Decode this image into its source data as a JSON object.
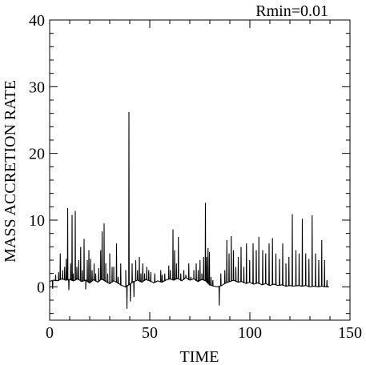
{
  "chart_data": {
    "type": "line",
    "title": "",
    "annotation": "Rmin=0.01",
    "xlabel": "TIME",
    "ylabel": "MASS ACCRETION RATE",
    "xlim": [
      0,
      150
    ],
    "ylim": [
      -5,
      40
    ],
    "xticks": [
      0,
      50,
      100,
      150
    ],
    "yticks": [
      0,
      10,
      20,
      30,
      40
    ],
    "grid": false,
    "series": [
      {
        "baseline": [
          [
            0,
            0.8
          ],
          [
            2,
            1.0
          ],
          [
            4,
            0.9
          ],
          [
            6,
            1.2
          ],
          [
            8,
            1.0
          ],
          [
            10,
            1.1
          ],
          [
            12,
            0.9
          ],
          [
            14,
            1.2
          ],
          [
            16,
            0.8
          ],
          [
            18,
            1.0
          ],
          [
            20,
            0.6
          ],
          [
            22,
            1.1
          ],
          [
            24,
            0.7
          ],
          [
            26,
            1.2
          ],
          [
            28,
            0.8
          ],
          [
            30,
            0.5
          ],
          [
            32,
            0.9
          ],
          [
            34,
            0.6
          ],
          [
            36,
            0.2
          ],
          [
            37,
            0.1
          ],
          [
            38,
            0.0
          ],
          [
            39,
            0.2
          ],
          [
            40,
            0.4
          ],
          [
            42,
            0.8
          ],
          [
            44,
            1.0
          ],
          [
            46,
            0.7
          ],
          [
            48,
            1.1
          ],
          [
            50,
            0.9
          ],
          [
            52,
            0.6
          ],
          [
            54,
            0.9
          ],
          [
            56,
            0.7
          ],
          [
            58,
            1.0
          ],
          [
            60,
            1.2
          ],
          [
            62,
            1.0
          ],
          [
            64,
            1.3
          ],
          [
            66,
            0.9
          ],
          [
            68,
            1.4
          ],
          [
            70,
            1.0
          ],
          [
            72,
            1.2
          ],
          [
            74,
            0.8
          ],
          [
            76,
            1.1
          ],
          [
            78,
            0.9
          ],
          [
            80,
            0.3
          ],
          [
            82,
            0.1
          ],
          [
            84,
            0.0
          ],
          [
            86,
            0.2
          ],
          [
            88,
            0.6
          ],
          [
            90,
            0.8
          ],
          [
            92,
            1.0
          ],
          [
            94,
            0.7
          ],
          [
            96,
            0.8
          ],
          [
            98,
            0.5
          ],
          [
            100,
            0.7
          ],
          [
            102,
            0.4
          ],
          [
            104,
            0.6
          ],
          [
            106,
            0.3
          ],
          [
            108,
            0.5
          ],
          [
            110,
            0.2
          ],
          [
            112,
            0.4
          ],
          [
            114,
            0.2
          ],
          [
            116,
            0.3
          ],
          [
            118,
            0.1
          ],
          [
            120,
            0.2
          ],
          [
            122,
            0.1
          ],
          [
            124,
            0.2
          ],
          [
            126,
            0.1
          ],
          [
            128,
            0.2
          ],
          [
            130,
            0.0
          ],
          [
            132,
            0.1
          ],
          [
            134,
            0.0
          ],
          [
            136,
            0.1
          ],
          [
            138,
            0.0
          ],
          [
            139.5,
            0.0
          ]
        ],
        "spikes": [
          [
            1.5,
            -0.3
          ],
          [
            3,
            1.8
          ],
          [
            4.5,
            2.2
          ],
          [
            5.3,
            5.0
          ],
          [
            6.5,
            2.5
          ],
          [
            7.5,
            3.0
          ],
          [
            8.3,
            4.2
          ],
          [
            9.0,
            11.8
          ],
          [
            9.6,
            -0.5
          ],
          [
            10.5,
            3.5
          ],
          [
            11.2,
            10.8
          ],
          [
            11.8,
            2.0
          ],
          [
            12.8,
            11.4
          ],
          [
            13.6,
            3.0
          ],
          [
            14.5,
            4.0
          ],
          [
            15.5,
            6.0
          ],
          [
            16.3,
            2.5
          ],
          [
            17.2,
            7.2
          ],
          [
            18.0,
            -0.4
          ],
          [
            18.8,
            4.0
          ],
          [
            19.6,
            5.5
          ],
          [
            20.4,
            4.2
          ],
          [
            21.2,
            2.5
          ],
          [
            22.2,
            3.5
          ],
          [
            23.0,
            2.0
          ],
          [
            24.5,
            2.8
          ],
          [
            25.5,
            5.5
          ],
          [
            26.2,
            8.3
          ],
          [
            27.2,
            9.5
          ],
          [
            28.0,
            3.5
          ],
          [
            29.0,
            2.0
          ],
          [
            30.0,
            5.0
          ],
          [
            31.2,
            3.0
          ],
          [
            32.0,
            3.0
          ],
          [
            33.4,
            6.5
          ],
          [
            34.2,
            1.5
          ],
          [
            35.5,
            3.5
          ],
          [
            38.0,
            2.5
          ],
          [
            38.6,
            -3.3
          ],
          [
            39.6,
            26.2
          ],
          [
            40.3,
            -2.2
          ],
          [
            41.2,
            3.5
          ],
          [
            42.1,
            -1.5
          ],
          [
            43.0,
            4.0
          ],
          [
            43.9,
            2.5
          ],
          [
            44.8,
            4.5
          ],
          [
            45.6,
            2.0
          ],
          [
            46.5,
            3.5
          ],
          [
            47.4,
            2.0
          ],
          [
            48.5,
            3.0
          ],
          [
            49.5,
            2.5
          ],
          [
            50.5,
            2.2
          ],
          [
            52.5,
            2.0
          ],
          [
            55.5,
            2.5
          ],
          [
            56.2,
            1.8
          ],
          [
            57.5,
            2.0
          ],
          [
            59.5,
            3.2
          ],
          [
            60.3,
            2.5
          ],
          [
            61.6,
            8.6
          ],
          [
            62.4,
            5.5
          ],
          [
            63.3,
            3.5
          ],
          [
            64.3,
            7.5
          ],
          [
            65.5,
            2.0
          ],
          [
            67.0,
            2.5
          ],
          [
            68.0,
            1.8
          ],
          [
            69.5,
            3.5
          ],
          [
            70.5,
            1.5
          ],
          [
            72.0,
            2.5
          ],
          [
            73.2,
            3.5
          ],
          [
            74.2,
            2.5
          ],
          [
            75.1,
            4.0
          ],
          [
            76.0,
            2.0
          ],
          [
            76.9,
            4.5
          ],
          [
            77.8,
            12.6
          ],
          [
            78.4,
            4.5
          ],
          [
            79.1,
            5.8
          ],
          [
            79.8,
            5.2
          ],
          [
            80.6,
            1.5
          ],
          [
            81.5,
            1.0
          ],
          [
            84.7,
            -2.8
          ],
          [
            85.5,
            2.0
          ],
          [
            87.5,
            2.5
          ],
          [
            88.5,
            7.0
          ],
          [
            89.6,
            5.0
          ],
          [
            90.7,
            7.6
          ],
          [
            91.8,
            5.5
          ],
          [
            93.0,
            3.0
          ],
          [
            94.2,
            4.5
          ],
          [
            95.6,
            6.0
          ],
          [
            97.0,
            3.0
          ],
          [
            98.3,
            6.5
          ],
          [
            99.9,
            4.0
          ],
          [
            101.6,
            6.5
          ],
          [
            103.2,
            5.5
          ],
          [
            104.5,
            7.5
          ],
          [
            106.4,
            5.5
          ],
          [
            107.9,
            5.0
          ],
          [
            109.6,
            6.5
          ],
          [
            111.3,
            7.3
          ],
          [
            113.0,
            5.0
          ],
          [
            114.8,
            4.2
          ],
          [
            116.4,
            6.5
          ],
          [
            118.0,
            3.5
          ],
          [
            119.5,
            4.5
          ],
          [
            121.2,
            10.9
          ],
          [
            123.0,
            5.5
          ],
          [
            124.6,
            5.0
          ],
          [
            126.2,
            10.2
          ],
          [
            127.9,
            5.0
          ],
          [
            129.5,
            4.2
          ],
          [
            131.1,
            10.7
          ],
          [
            132.8,
            5.0
          ],
          [
            134.4,
            4.0
          ],
          [
            135.9,
            7.0
          ],
          [
            137.3,
            4.0
          ],
          [
            138.5,
            1.0
          ]
        ]
      }
    ]
  }
}
